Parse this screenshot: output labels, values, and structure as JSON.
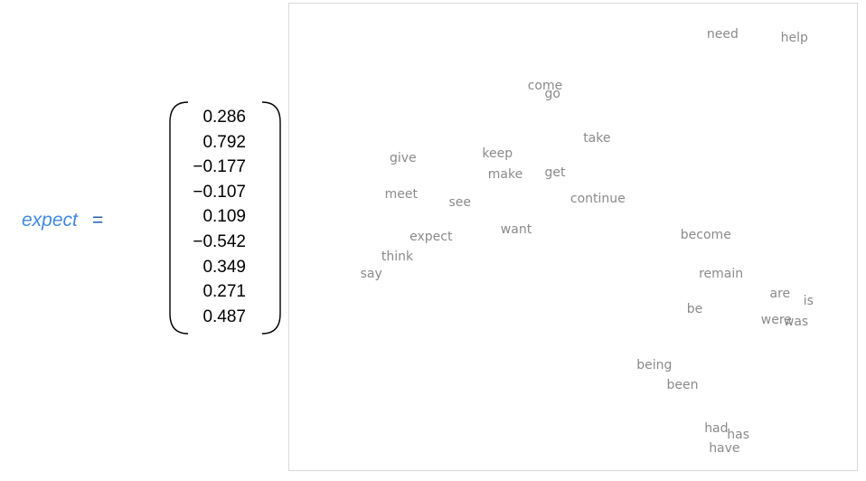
{
  "definition": {
    "word": "expect",
    "equals": "=",
    "vector": [
      "0.286",
      "0.792",
      "−0.177",
      "−0.107",
      "0.109",
      "−0.542",
      "0.349",
      "0.271",
      "0.487"
    ]
  },
  "chart_data": {
    "type": "scatter",
    "title": "",
    "xlabel": "",
    "ylabel": "",
    "xlim": [
      0,
      100
    ],
    "ylim": [
      0,
      100
    ],
    "grid": false,
    "points": [
      {
        "label": "need",
        "x": 77.4,
        "y": 96.1
      },
      {
        "label": "help",
        "x": 90.6,
        "y": 95.2
      },
      {
        "label": "come",
        "x": 44.7,
        "y": 84.4
      },
      {
        "label": "go",
        "x": 46.0,
        "y": 82.6
      },
      {
        "label": "take",
        "x": 54.2,
        "y": 72.6
      },
      {
        "label": "give",
        "x": 18.5,
        "y": 68.1
      },
      {
        "label": "keep",
        "x": 35.9,
        "y": 69.1
      },
      {
        "label": "make",
        "x": 37.3,
        "y": 64.3
      },
      {
        "label": "get",
        "x": 46.5,
        "y": 64.7
      },
      {
        "label": "meet",
        "x": 18.1,
        "y": 59.8
      },
      {
        "label": "see",
        "x": 29.0,
        "y": 57.9
      },
      {
        "label": "continue",
        "x": 54.4,
        "y": 58.9
      },
      {
        "label": "want",
        "x": 39.3,
        "y": 51.8
      },
      {
        "label": "expect",
        "x": 23.6,
        "y": 50.2
      },
      {
        "label": "become",
        "x": 74.3,
        "y": 50.6
      },
      {
        "label": "think",
        "x": 17.4,
        "y": 45.6
      },
      {
        "label": "say",
        "x": 12.6,
        "y": 41.9
      },
      {
        "label": "remain",
        "x": 77.1,
        "y": 41.9
      },
      {
        "label": "are",
        "x": 88.0,
        "y": 37.2
      },
      {
        "label": "is",
        "x": 93.2,
        "y": 35.7
      },
      {
        "label": "be",
        "x": 72.3,
        "y": 33.8
      },
      {
        "label": "were",
        "x": 87.3,
        "y": 31.3
      },
      {
        "label": "was",
        "x": 90.9,
        "y": 30.9
      },
      {
        "label": "being",
        "x": 64.8,
        "y": 21.2
      },
      {
        "label": "been",
        "x": 70.0,
        "y": 16.6
      },
      {
        "label": "had",
        "x": 76.2,
        "y": 6.8
      },
      {
        "label": "has",
        "x": 80.3,
        "y": 5.4
      },
      {
        "label": "have",
        "x": 77.7,
        "y": 2.3
      }
    ]
  }
}
